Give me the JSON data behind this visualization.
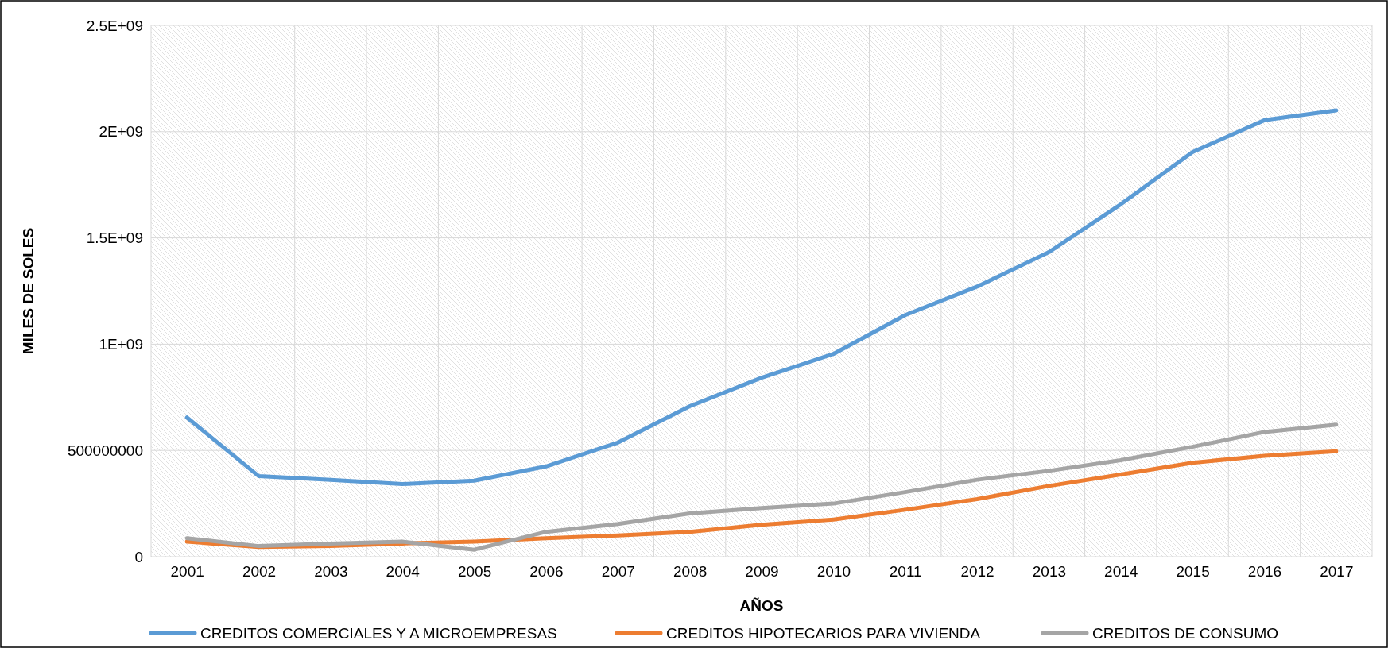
{
  "chart_data": {
    "type": "line",
    "xlabel": "AÑOS",
    "ylabel": "MILES DE SOLES",
    "categories": [
      "2001",
      "2002",
      "2003",
      "2004",
      "2005",
      "2006",
      "2007",
      "2008",
      "2009",
      "2010",
      "2011",
      "2012",
      "2013",
      "2014",
      "2015",
      "2016",
      "2017"
    ],
    "ylim": [
      0,
      2500000000
    ],
    "yticks": [
      0,
      {
        "value": 500000000,
        "label": "500000000"
      },
      {
        "value": 1000000000,
        "label": "1E+09"
      },
      {
        "value": 1500000000,
        "label": "1.5E+09"
      },
      {
        "value": 2000000000,
        "label": "2E+09"
      },
      {
        "value": 2500000000,
        "label": "2.5E+09"
      }
    ],
    "grid": true,
    "legend": "bottom",
    "marker": "none",
    "line_style": "solid",
    "series": [
      {
        "name": "CREDITOS COMERCIALES Y A MICROEMPRESAS",
        "color": "#5b9bd5",
        "values": [
          655000000,
          379000000,
          362000000,
          342000000,
          358000000,
          425000000,
          537000000,
          708000000,
          842000000,
          954000000,
          1137000000,
          1271000000,
          1433000000,
          1658000000,
          1904000000,
          2054000000,
          2100000000
        ]
      },
      {
        "name": "CREDITOS HIPOTECARIOS PARA VIVIENDA",
        "color": "#ed7d31",
        "values": [
          71000000,
          46000000,
          50000000,
          62000000,
          71000000,
          87000000,
          100000000,
          117000000,
          150000000,
          175000000,
          221000000,
          271000000,
          333000000,
          387000000,
          442000000,
          475000000,
          496000000
        ]
      },
      {
        "name": "CREDITOS DE CONSUMO",
        "color": "#a5a5a5",
        "values": [
          87000000,
          50000000,
          62000000,
          71000000,
          33000000,
          117000000,
          154000000,
          204000000,
          229000000,
          250000000,
          304000000,
          362000000,
          404000000,
          454000000,
          517000000,
          587000000,
          621000000
        ]
      }
    ]
  }
}
